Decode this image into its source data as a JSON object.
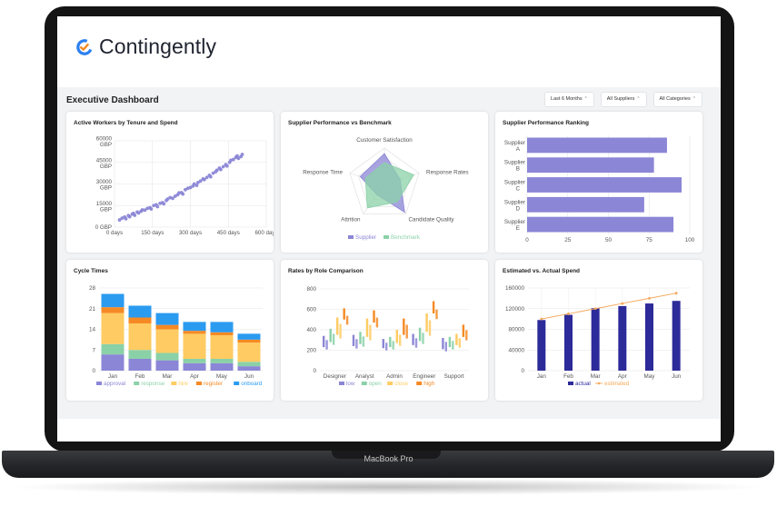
{
  "app": {
    "name": "Contingently"
  },
  "device": {
    "label": "MacBook Pro"
  },
  "dashboard": {
    "title": "Executive Dashboard",
    "filters": [
      {
        "label": "Last 6 Months"
      },
      {
        "label": "All Suppliers"
      },
      {
        "label": "All Categories"
      }
    ]
  },
  "colors": {
    "purple": "#8b86d6",
    "green": "#8bd1a8",
    "yellow": "#ffcb62",
    "orange": "#f58a24",
    "blue": "#2b9bf0",
    "navy": "#2d2a9a",
    "line_orange": "#f5a85a"
  },
  "charts": {
    "workers": {
      "title": "Active Workers by Tenure and Spend",
      "chart_data": {
        "type": "scatter",
        "xticks": [
          "0 days",
          "150 days",
          "300 days",
          "450 days",
          "600 days"
        ],
        "yticks": [
          [
            "60000",
            "GBP"
          ],
          [
            "45000",
            "GBP"
          ],
          [
            "30000",
            "GBP"
          ],
          [
            "15000",
            "GBP"
          ],
          [
            "0 GBP"
          ]
        ],
        "xlim": [
          0,
          600
        ],
        "ylim": [
          0,
          60000
        ],
        "points": [
          [
            20,
            5000
          ],
          [
            30,
            6200
          ],
          [
            40,
            7000
          ],
          [
            45,
            5800
          ],
          [
            55,
            8000
          ],
          [
            60,
            7200
          ],
          [
            70,
            9000
          ],
          [
            75,
            9500
          ],
          [
            80,
            8200
          ],
          [
            90,
            10500
          ],
          [
            95,
            9800
          ],
          [
            105,
            11000
          ],
          [
            110,
            12000
          ],
          [
            120,
            11800
          ],
          [
            130,
            13000
          ],
          [
            140,
            13500
          ],
          [
            145,
            12600
          ],
          [
            155,
            15000
          ],
          [
            165,
            15500
          ],
          [
            170,
            14200
          ],
          [
            180,
            16500
          ],
          [
            190,
            17000
          ],
          [
            195,
            16200
          ],
          [
            205,
            18500
          ],
          [
            210,
            19500
          ],
          [
            220,
            20500
          ],
          [
            230,
            20000
          ],
          [
            240,
            21500
          ],
          [
            250,
            22500
          ],
          [
            255,
            23800
          ],
          [
            265,
            24000
          ],
          [
            270,
            23000
          ],
          [
            280,
            26000
          ],
          [
            290,
            27000
          ],
          [
            300,
            27500
          ],
          [
            310,
            28500
          ],
          [
            315,
            30000
          ],
          [
            325,
            29000
          ],
          [
            330,
            31000
          ],
          [
            340,
            32000
          ],
          [
            350,
            33500
          ],
          [
            355,
            33000
          ],
          [
            365,
            34500
          ],
          [
            375,
            36000
          ],
          [
            380,
            35000
          ],
          [
            390,
            37500
          ],
          [
            400,
            38500
          ],
          [
            405,
            39500
          ],
          [
            415,
            41000
          ],
          [
            420,
            40000
          ],
          [
            430,
            42000
          ],
          [
            440,
            43500
          ],
          [
            445,
            42500
          ],
          [
            455,
            45000
          ],
          [
            460,
            46500
          ],
          [
            470,
            47000
          ],
          [
            480,
            48500
          ],
          [
            485,
            49500
          ],
          [
            490,
            47800
          ],
          [
            500,
            49000
          ],
          [
            505,
            50500
          ]
        ]
      }
    },
    "radar": {
      "title": "Supplier Performance vs Benchmark",
      "chart_data": {
        "type": "radar",
        "axes": [
          "Customer Satisfaction",
          "Response Rates",
          "Candidate Quality",
          "Attrition",
          "Response Time"
        ],
        "series": [
          {
            "name": "Supplier",
            "values": [
              0.85,
              0.45,
              0.95,
              0.35,
              0.7
            ]
          },
          {
            "name": "Benchmark",
            "values": [
              0.6,
              0.85,
              0.6,
              0.8,
              0.55
            ]
          }
        ]
      }
    },
    "ranking": {
      "title": "Supplier Performance Ranking",
      "chart_data": {
        "type": "bar",
        "orientation": "horizontal",
        "categories": [
          [
            "Supplier",
            "A"
          ],
          [
            "Supplier",
            "B"
          ],
          [
            "Supplier",
            "C"
          ],
          [
            "Supplier",
            "D"
          ],
          [
            "Supplier",
            "E"
          ]
        ],
        "values": [
          86,
          78,
          95,
          72,
          90
        ],
        "xlim": [
          0,
          100
        ],
        "xticks": [
          "0",
          "25",
          "50",
          "75",
          "100"
        ]
      }
    },
    "cycle": {
      "title": "Cycle Times",
      "chart_data": {
        "type": "bar",
        "stacked": true,
        "categories": [
          "Jan",
          "Feb",
          "Mar",
          "Apr",
          "May",
          "Jun"
        ],
        "yticks": [
          "28",
          "21",
          "14",
          "7",
          "0"
        ],
        "ylim": [
          0,
          28
        ],
        "series": [
          {
            "name": "approval",
            "values": [
              5.5,
              4,
              3.5,
              2.5,
              2.5,
              1.5
            ]
          },
          {
            "name": "response",
            "values": [
              3.5,
              3,
              2.5,
              1.5,
              1.5,
              1.5
            ]
          },
          {
            "name": "hire",
            "values": [
              10.5,
              9,
              8,
              8.5,
              8,
              6.5
            ]
          },
          {
            "name": "register",
            "values": [
              2,
              2,
              1.5,
              1,
              1,
              1
            ]
          },
          {
            "name": "onboard",
            "values": [
              4.5,
              4,
              4,
              3,
              3.5,
              2
            ]
          }
        ]
      }
    },
    "rates": {
      "title": "Rates by Role Comparison",
      "chart_data": {
        "type": "bar",
        "categories": [
          "Designer",
          "Analyst",
          "Admin",
          "Engineer",
          "Support"
        ],
        "yticks": [
          "800",
          "600",
          "400",
          "200",
          "0"
        ],
        "ylim": [
          0,
          800
        ],
        "series": [
          {
            "name": "low",
            "values": [
              [
                230,
                340
              ],
              [
                240,
                350
              ],
              [
                220,
                310
              ],
              [
                250,
                360
              ],
              [
                210,
                320
              ]
            ]
          },
          {
            "name": "open",
            "values": [
              [
                280,
                410
              ],
              [
                260,
                380
              ],
              [
                230,
                330
              ],
              [
                290,
                420
              ],
              [
                230,
                330
              ]
            ]
          },
          {
            "name": "close",
            "values": [
              [
                350,
                520
              ],
              [
                330,
                510
              ],
              [
                270,
                400
              ],
              [
                380,
                560
              ],
              [
                250,
                360
              ]
            ]
          },
          {
            "name": "high",
            "values": [
              [
                500,
                610
              ],
              [
                470,
                590
              ],
              [
                350,
                510
              ],
              [
                560,
                680
              ],
              [
                330,
                450
              ]
            ]
          }
        ]
      }
    },
    "spend": {
      "title": "Estimated vs. Actual Spend",
      "chart_data": {
        "type": "bar+line",
        "categories": [
          "Jan",
          "Feb",
          "Mar",
          "Apr",
          "May",
          "Jun"
        ],
        "yticks": [
          "160000",
          "120000",
          "80000",
          "40000",
          "0"
        ],
        "ylim": [
          0,
          160000
        ],
        "series": [
          {
            "name": "actual",
            "values": [
              98000,
              108000,
              121000,
              125000,
              130000,
              135000
            ]
          },
          {
            "name": "estimated",
            "values": [
              100000,
              110000,
              120000,
              130000,
              140000,
              150000
            ]
          }
        ]
      }
    }
  }
}
